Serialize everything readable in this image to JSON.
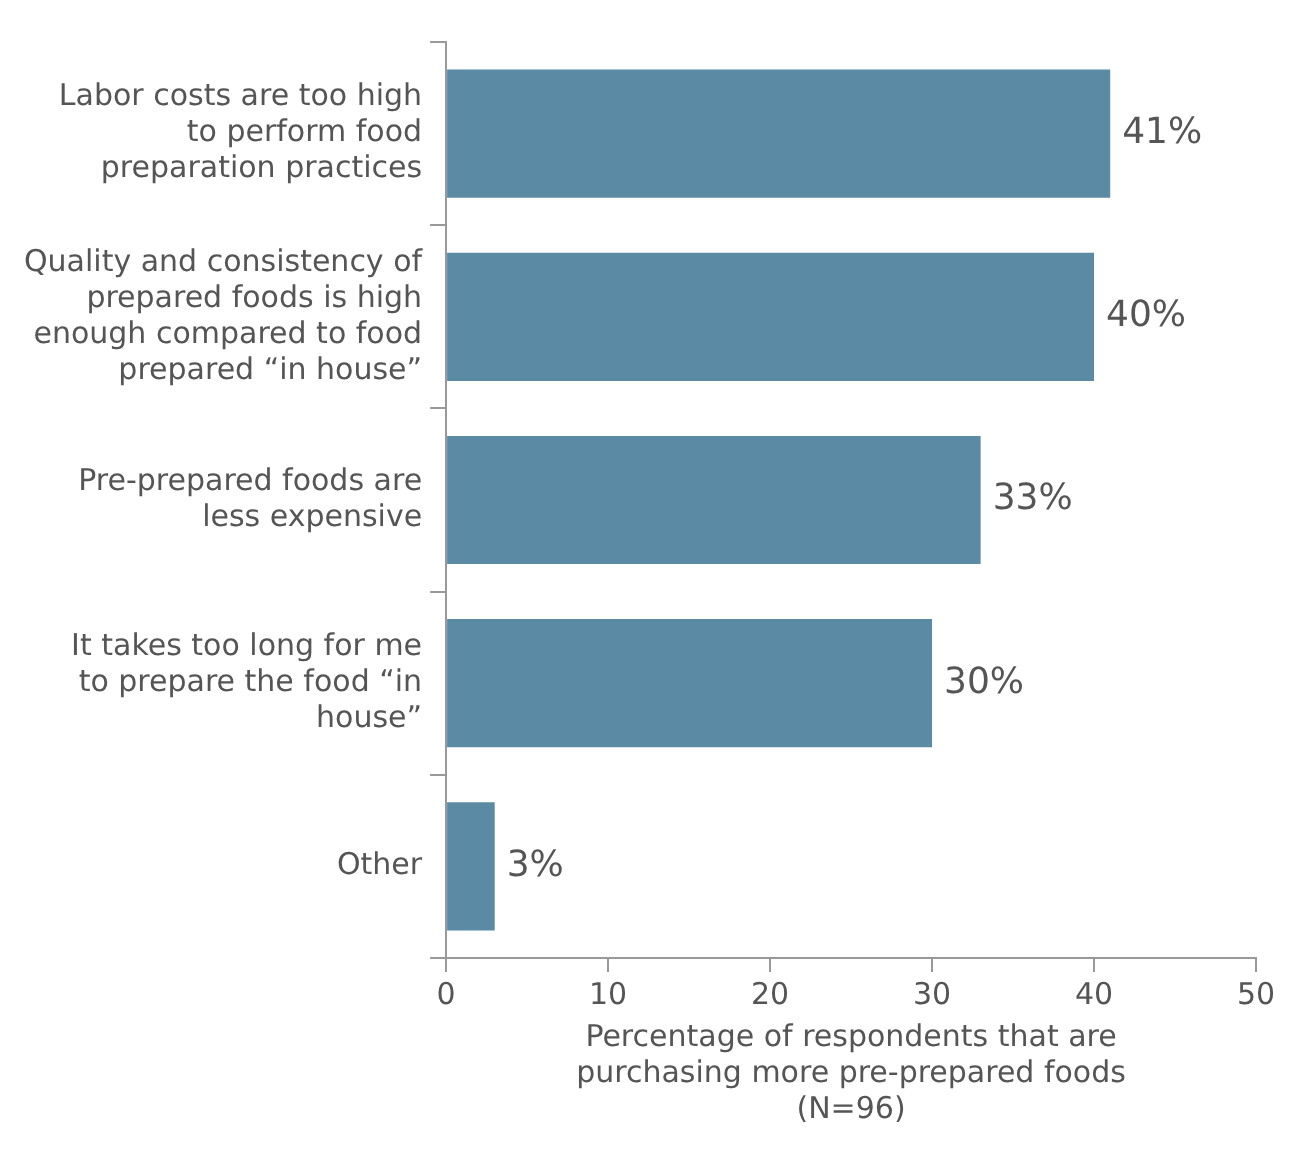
{
  "chart_data": {
    "type": "bar",
    "orientation": "horizontal",
    "xlabel": "Percentage of respondents that are purchasing more pre-prepared foods (N=96)",
    "categories": [
      "Labor costs are too high to perform food preparation practices",
      "Quality and consistency of prepared foods is high enough compared to food prepared “in house”",
      "Pre-prepared foods are less expensive",
      "It takes too long for me to prepare the food “in house”",
      "Other"
    ],
    "values": [
      41,
      40,
      33,
      30,
      3
    ],
    "value_labels": [
      "41%",
      "40%",
      "33%",
      "30%",
      "3%"
    ],
    "color": "#5b8aa5",
    "xlim": [
      0,
      50
    ],
    "xticks": [
      0,
      10,
      20,
      30,
      40,
      50
    ],
    "grid": false,
    "legend": false
  }
}
